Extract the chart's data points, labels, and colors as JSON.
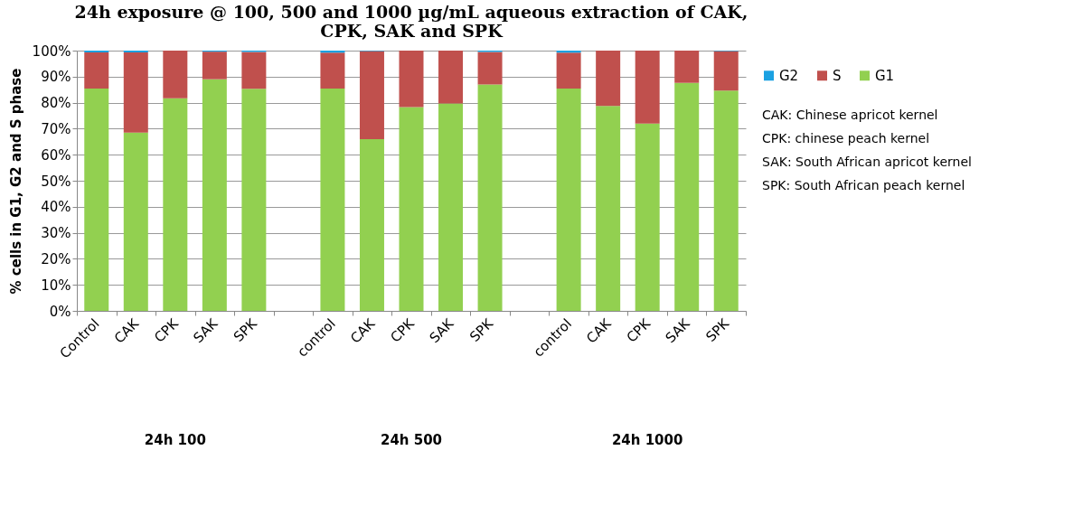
{
  "chart_data": {
    "type": "bar",
    "stacked": true,
    "title": "24h exposure  @ 100, 500 and 1000 µg/mL aqueous extraction of CAK,\nCPK, SAK and SPK",
    "ylabel": "% cells in G1, G2 and S phase",
    "categories": [
      "Control",
      "CAK",
      "CPK",
      "SAK",
      "SPK",
      null,
      "control",
      "CAK",
      "CPK",
      "SAK",
      "SPK",
      null,
      "control",
      "CAK",
      "CPK",
      "SAK",
      "SPK"
    ],
    "series": [
      {
        "name": "G1",
        "color": "#92d050",
        "values": [
          85.4,
          68.5,
          81.7,
          89.0,
          85.3,
          null,
          85.4,
          66.0,
          78.3,
          79.7,
          87.0,
          null,
          85.4,
          78.7,
          72.0,
          87.6,
          84.6
        ]
      },
      {
        "name": "S",
        "color": "#c0504d",
        "values": [
          13.9,
          30.8,
          18.3,
          10.6,
          14.2,
          null,
          13.8,
          33.8,
          21.7,
          20.3,
          12.5,
          null,
          13.8,
          21.3,
          28.0,
          12.4,
          15.2
        ]
      },
      {
        "name": "G2",
        "color": "#1ba1e2",
        "values": [
          0.7,
          0.7,
          0,
          0.4,
          0.5,
          null,
          0.8,
          0.2,
          0,
          0,
          0.5,
          null,
          0.8,
          0,
          0,
          0,
          0.2
        ]
      }
    ],
    "ylim": [
      0,
      100
    ],
    "yticks": [
      {
        "value": 0,
        "label": "0%"
      },
      {
        "value": 10,
        "label": "10%"
      },
      {
        "value": 20,
        "label": "20%"
      },
      {
        "value": 30,
        "label": "30%"
      },
      {
        "value": 40,
        "label": "40%"
      },
      {
        "value": 50,
        "label": "50%"
      },
      {
        "value": 60,
        "label": "60%"
      },
      {
        "value": 70,
        "label": "70%"
      },
      {
        "value": 80,
        "label": "80%"
      },
      {
        "value": 90,
        "label": "90%"
      },
      {
        "value": 100,
        "label": "100%"
      }
    ],
    "grid": "y",
    "legend": "right",
    "annotations": [
      "24h 100",
      "24h 500",
      "24h 1000",
      "CAK: Chinese  apricot kernel",
      "CPK: chinese peach kernel",
      "SAK: South African apricot kernel",
      "SPK: South African peach kernel"
    ]
  }
}
